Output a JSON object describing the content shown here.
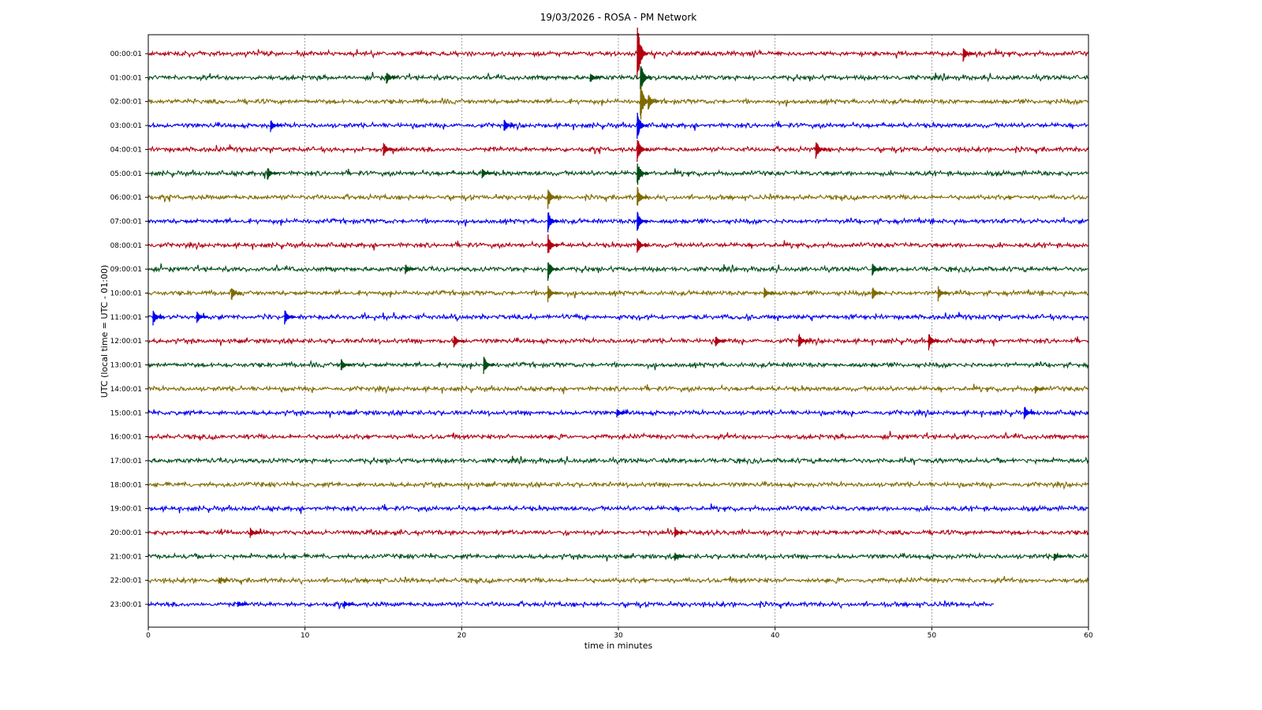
{
  "chart_data": {
    "type": "line",
    "title": "19/03/2026 - ROSA - PM Network",
    "xlabel": "time in minutes",
    "ylabel": "UTC (local time = UTC - 01:00)",
    "xlim": [
      0,
      60
    ],
    "x_ticks": [
      0,
      10,
      20,
      30,
      40,
      50,
      60
    ],
    "grid": "vertical dashed at major x ticks",
    "trace_colors": [
      "#b10010",
      "#004d16",
      "#7f6a00",
      "#0000ee"
    ],
    "rows": [
      {
        "label": "00:00:01",
        "end_minute": 60,
        "events": [
          {
            "t": 31.2,
            "amp": 3.0
          },
          {
            "t": 52.0,
            "amp": 0.7
          }
        ]
      },
      {
        "label": "01:00:01",
        "end_minute": 60,
        "events": [
          {
            "t": 31.4,
            "amp": 1.5
          },
          {
            "t": 15.2,
            "amp": 0.6
          },
          {
            "t": 28.2,
            "amp": 0.5
          }
        ]
      },
      {
        "label": "02:00:01",
        "end_minute": 60,
        "events": [
          {
            "t": 31.4,
            "amp": 1.9
          },
          {
            "t": 31.9,
            "amp": 0.8
          }
        ]
      },
      {
        "label": "03:00:01",
        "end_minute": 60,
        "events": [
          {
            "t": 7.8,
            "amp": 0.6
          },
          {
            "t": 22.7,
            "amp": 0.6
          },
          {
            "t": 31.2,
            "amp": 1.3
          }
        ]
      },
      {
        "label": "04:00:01",
        "end_minute": 60,
        "events": [
          {
            "t": 15.0,
            "amp": 0.7
          },
          {
            "t": 31.2,
            "amp": 1.2
          },
          {
            "t": 42.6,
            "amp": 0.9
          }
        ]
      },
      {
        "label": "05:00:01",
        "end_minute": 60,
        "events": [
          {
            "t": 7.6,
            "amp": 0.6
          },
          {
            "t": 21.3,
            "amp": 0.5
          },
          {
            "t": 31.2,
            "amp": 1.2
          }
        ]
      },
      {
        "label": "06:00:01",
        "end_minute": 60,
        "events": [
          {
            "t": 25.5,
            "amp": 1.0
          },
          {
            "t": 31.2,
            "amp": 1.0
          }
        ]
      },
      {
        "label": "07:00:01",
        "end_minute": 60,
        "events": [
          {
            "t": 25.5,
            "amp": 1.0
          },
          {
            "t": 31.2,
            "amp": 1.0
          }
        ]
      },
      {
        "label": "08:00:01",
        "end_minute": 60,
        "events": [
          {
            "t": 25.5,
            "amp": 1.0
          },
          {
            "t": 31.2,
            "amp": 0.8
          }
        ]
      },
      {
        "label": "09:00:01",
        "end_minute": 60,
        "events": [
          {
            "t": 25.5,
            "amp": 1.0
          },
          {
            "t": 16.4,
            "amp": 0.5
          },
          {
            "t": 46.2,
            "amp": 0.6
          }
        ]
      },
      {
        "label": "10:00:01",
        "end_minute": 60,
        "events": [
          {
            "t": 5.3,
            "amp": 0.7
          },
          {
            "t": 25.5,
            "amp": 0.8
          },
          {
            "t": 39.3,
            "amp": 0.6
          },
          {
            "t": 46.2,
            "amp": 0.7
          },
          {
            "t": 50.4,
            "amp": 0.7
          }
        ]
      },
      {
        "label": "11:00:01",
        "end_minute": 60,
        "events": [
          {
            "t": 0.3,
            "amp": 0.7
          },
          {
            "t": 3.1,
            "amp": 0.6
          },
          {
            "t": 8.7,
            "amp": 0.7
          }
        ]
      },
      {
        "label": "12:00:01",
        "end_minute": 60,
        "events": [
          {
            "t": 19.5,
            "amp": 0.7
          },
          {
            "t": 36.2,
            "amp": 0.6
          },
          {
            "t": 41.5,
            "amp": 0.8
          },
          {
            "t": 49.8,
            "amp": 0.8
          }
        ]
      },
      {
        "label": "13:00:01",
        "end_minute": 60,
        "events": [
          {
            "t": 12.3,
            "amp": 0.6
          },
          {
            "t": 21.4,
            "amp": 0.9
          }
        ]
      },
      {
        "label": "14:00:01",
        "end_minute": 60,
        "events": [
          {
            "t": 56.6,
            "amp": 0.4
          }
        ]
      },
      {
        "label": "15:00:01",
        "end_minute": 60,
        "events": [
          {
            "t": 55.9,
            "amp": 0.7
          },
          {
            "t": 29.9,
            "amp": 0.4
          }
        ]
      },
      {
        "label": "16:00:01",
        "end_minute": 60,
        "events": []
      },
      {
        "label": "17:00:01",
        "end_minute": 60,
        "events": []
      },
      {
        "label": "18:00:01",
        "end_minute": 60,
        "events": []
      },
      {
        "label": "19:00:01",
        "end_minute": 60,
        "events": []
      },
      {
        "label": "20:00:01",
        "end_minute": 60,
        "events": [
          {
            "t": 6.5,
            "amp": 0.5
          },
          {
            "t": 33.6,
            "amp": 0.5
          }
        ]
      },
      {
        "label": "21:00:01",
        "end_minute": 60,
        "events": [
          {
            "t": 33.6,
            "amp": 0.4
          },
          {
            "t": 57.8,
            "amp": 0.4
          }
        ]
      },
      {
        "label": "22:00:01",
        "end_minute": 60,
        "events": [
          {
            "t": 4.5,
            "amp": 0.3
          }
        ]
      },
      {
        "label": "23:00:01",
        "end_minute": 54,
        "events": [
          {
            "t": 5.7,
            "amp": 0.3
          },
          {
            "t": 12.5,
            "amp": 0.3
          }
        ]
      }
    ]
  }
}
